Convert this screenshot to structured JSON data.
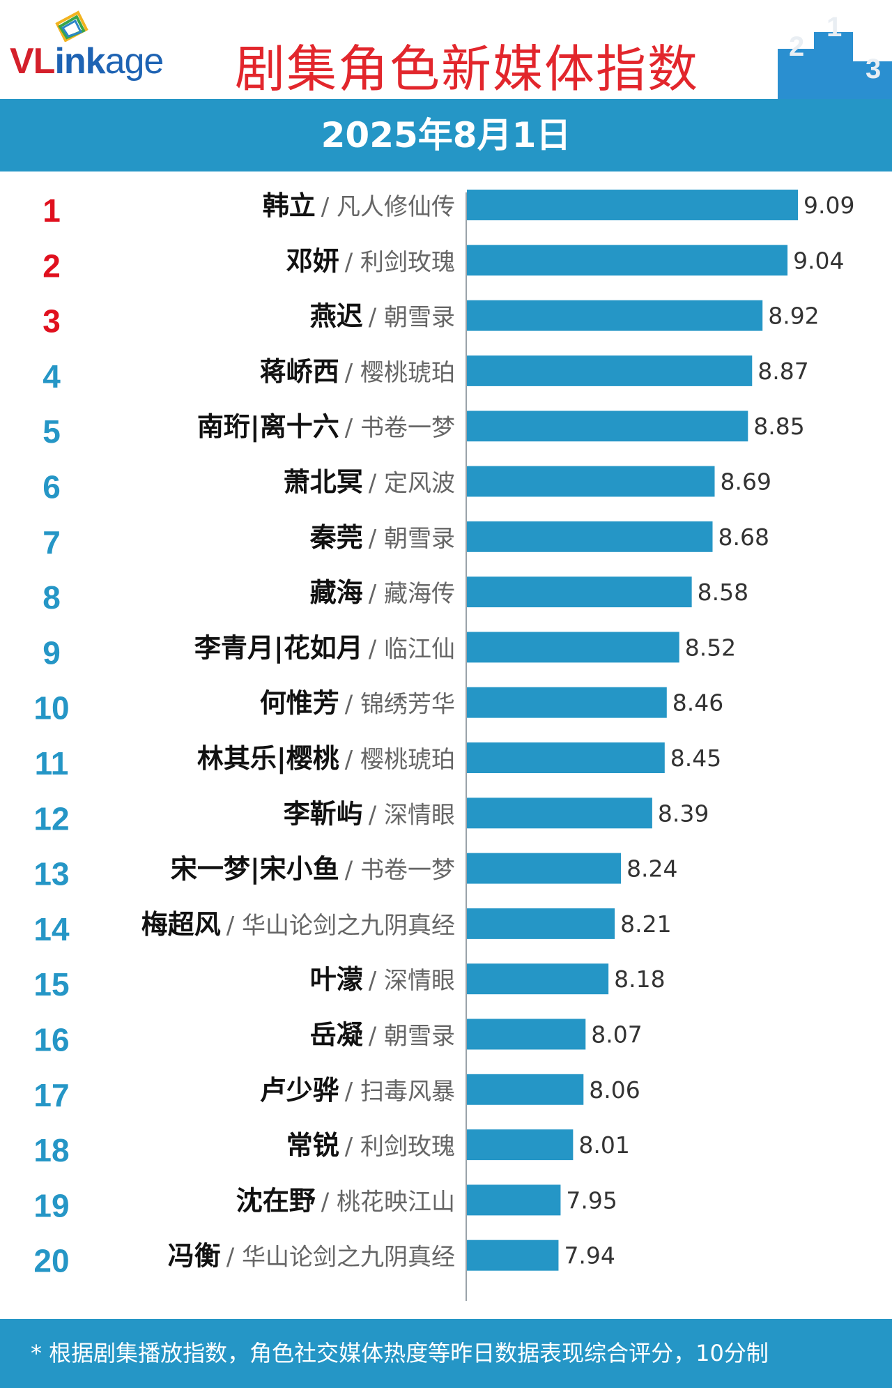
{
  "header": {
    "logo_text_vl": "VL",
    "logo_text_ink": "ink",
    "logo_text_age": "age",
    "title": "剧集角色新媒体指数",
    "podium_labels": [
      "2",
      "1",
      "3"
    ]
  },
  "date": "2025年8月1日",
  "footer_note": "* 根据剧集播放指数，角色社交媒体热度等昨日数据表现综合评分，10分制",
  "colors": {
    "bar": "#2596c6",
    "rank_top3": "#e0101e",
    "rank_other": "#2596c6",
    "title": "#e2262c",
    "band": "#2596c6"
  },
  "chart_data": {
    "type": "bar",
    "orientation": "horizontal",
    "xlim": [
      7.5,
      9.2
    ],
    "rows": [
      {
        "rank": "1",
        "role": "韩立",
        "drama": "凡人修仙传",
        "value": 9.09
      },
      {
        "rank": "2",
        "role": "邓妍",
        "drama": "利剑玫瑰",
        "value": 9.04
      },
      {
        "rank": "3",
        "role": "燕迟",
        "drama": "朝雪录",
        "value": 8.92
      },
      {
        "rank": "4",
        "role": "蒋峤西",
        "drama": "樱桃琥珀",
        "value": 8.87
      },
      {
        "rank": "5",
        "role": "南珩|离十六",
        "drama": "书卷一梦",
        "value": 8.85
      },
      {
        "rank": "6",
        "role": "萧北冥",
        "drama": "定风波",
        "value": 8.69
      },
      {
        "rank": "7",
        "role": "秦莞",
        "drama": "朝雪录",
        "value": 8.68
      },
      {
        "rank": "8",
        "role": "藏海",
        "drama": "藏海传",
        "value": 8.58
      },
      {
        "rank": "9",
        "role": "李青月|花如月",
        "drama": "临江仙",
        "value": 8.52
      },
      {
        "rank": "10",
        "role": "何惟芳",
        "drama": "锦绣芳华",
        "value": 8.46
      },
      {
        "rank": "11",
        "role": "林其乐|樱桃",
        "drama": "樱桃琥珀",
        "value": 8.45
      },
      {
        "rank": "12",
        "role": "李靳屿",
        "drama": "深情眼",
        "value": 8.39
      },
      {
        "rank": "13",
        "role": "宋一梦|宋小鱼",
        "drama": "书卷一梦",
        "value": 8.24
      },
      {
        "rank": "14",
        "role": "梅超风",
        "drama": "华山论剑之九阴真经",
        "value": 8.21
      },
      {
        "rank": "15",
        "role": "叶濛",
        "drama": "深情眼",
        "value": 8.18
      },
      {
        "rank": "16",
        "role": "岳凝",
        "drama": "朝雪录",
        "value": 8.07
      },
      {
        "rank": "17",
        "role": "卢少骅",
        "drama": "扫毒风暴",
        "value": 8.06
      },
      {
        "rank": "18",
        "role": "常锐",
        "drama": "利剑玫瑰",
        "value": 8.01
      },
      {
        "rank": "19",
        "role": "沈在野",
        "drama": "桃花映江山",
        "value": 7.95
      },
      {
        "rank": "20",
        "role": "冯衡",
        "drama": "华山论剑之九阴真经",
        "value": 7.94
      }
    ]
  }
}
